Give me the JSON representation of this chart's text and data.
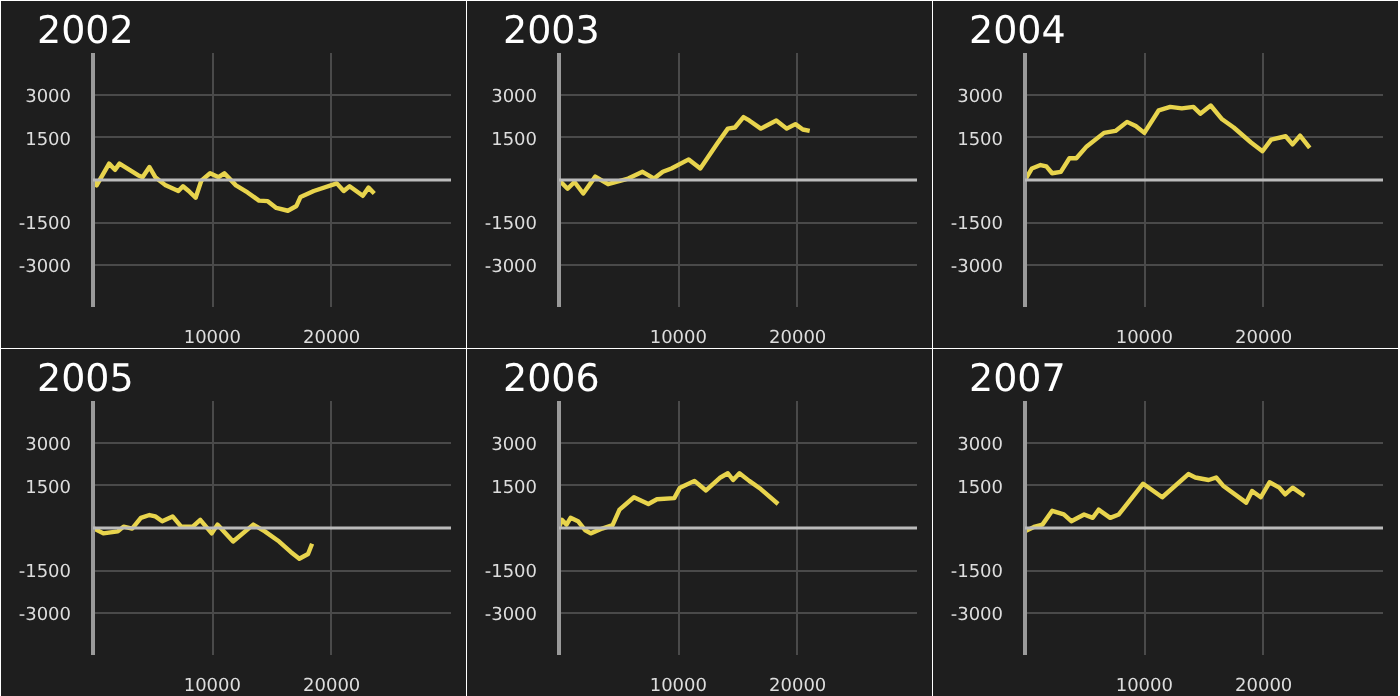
{
  "chart_data": [
    {
      "type": "line",
      "title": "2002",
      "color": "#e8d44d",
      "xlim": [
        0,
        30000
      ],
      "ylim": [
        -4500,
        4500
      ],
      "xticks": [
        10000,
        20000
      ],
      "yticks": [
        -3000,
        -1500,
        1500,
        3000
      ],
      "grid": true,
      "ref_lines": [
        {
          "axis": "y",
          "value": 0
        }
      ],
      "x": [
        0,
        300,
        1350,
        1840,
        2220,
        3770,
        4150,
        4730,
        5220,
        6090,
        7150,
        7540,
        8020,
        8600,
        9080,
        9810,
        10530,
        11010,
        11980,
        12950,
        13910,
        14640,
        15360,
        16330,
        17050,
        17390,
        18500,
        20430,
        21010,
        21500,
        22610,
        23090,
        23570
      ],
      "values": [
        0,
        -190,
        580,
        360,
        580,
        170,
        100,
        460,
        100,
        -190,
        -390,
        -220,
        -390,
        -630,
        -20,
        240,
        100,
        240,
        -190,
        -440,
        -730,
        -750,
        -990,
        -1090,
        -920,
        -600,
        -390,
        -120,
        -390,
        -220,
        -560,
        -270,
        -480
      ]
    },
    {
      "type": "line",
      "title": "2003",
      "color": "#e8d44d",
      "xlim": [
        0,
        30000
      ],
      "ylim": [
        -4500,
        4500
      ],
      "xticks": [
        10000,
        20000
      ],
      "yticks": [
        -3000,
        -1500,
        1500,
        3000
      ],
      "grid": true,
      "ref_lines": [
        {
          "axis": "y",
          "value": 0
        }
      ],
      "x": [
        0,
        720,
        1300,
        2030,
        3040,
        4110,
        5800,
        7000,
        7970,
        8700,
        9420,
        10870,
        11840,
        13290,
        14150,
        14740,
        15460,
        15940,
        16910,
        18210,
        19080,
        19810,
        20430,
        21010
      ],
      "values": [
        0,
        -310,
        -70,
        -480,
        120,
        -150,
        50,
        290,
        50,
        290,
        410,
        730,
        410,
        1310,
        1820,
        1860,
        2230,
        2110,
        1820,
        2110,
        1820,
        1980,
        1790,
        1740
      ]
    },
    {
      "type": "line",
      "title": "2004",
      "color": "#e8d44d",
      "xlim": [
        0,
        30000
      ],
      "ylim": [
        -4500,
        4500
      ],
      "xticks": [
        10000,
        20000
      ],
      "yticks": [
        -3000,
        -1500,
        1500,
        3000
      ],
      "grid": true,
      "ref_lines": [
        {
          "axis": "y",
          "value": 0
        }
      ],
      "x": [
        0,
        580,
        1300,
        1790,
        2270,
        3000,
        3720,
        4300,
        5170,
        6620,
        7580,
        8550,
        9280,
        10000,
        11210,
        12170,
        13140,
        14110,
        14690,
        15560,
        16520,
        17490,
        18940,
        19900,
        20630,
        21840,
        22420,
        23050,
        23860
      ],
      "values": [
        0,
        410,
        530,
        480,
        240,
        290,
        770,
        770,
        1190,
        1670,
        1740,
        2060,
        1910,
        1670,
        2470,
        2590,
        2540,
        2590,
        2350,
        2640,
        2150,
        1860,
        1330,
        1020,
        1430,
        1550,
        1260,
        1570,
        1140
      ]
    },
    {
      "type": "line",
      "title": "2005",
      "color": "#e8d44d",
      "xlim": [
        0,
        30000
      ],
      "ylim": [
        -4500,
        4500
      ],
      "xticks": [
        10000,
        20000
      ],
      "yticks": [
        -3000,
        -1500,
        1500,
        3000
      ],
      "grid": true,
      "ref_lines": [
        {
          "axis": "y",
          "value": 0
        }
      ],
      "x": [
        0,
        870,
        2080,
        2560,
        3280,
        4010,
        4730,
        5220,
        5800,
        6670,
        7390,
        8360,
        8990,
        9950,
        10430,
        11740,
        13430,
        14400,
        15600,
        16570,
        17290,
        18020,
        18360
      ],
      "values": [
        0,
        -190,
        -120,
        50,
        -20,
        360,
        460,
        410,
        240,
        410,
        50,
        50,
        290,
        -190,
        120,
        -480,
        120,
        -120,
        -480,
        -850,
        -1090,
        -920,
        -560
      ]
    },
    {
      "type": "line",
      "title": "2006",
      "color": "#e8d44d",
      "xlim": [
        0,
        30000
      ],
      "ylim": [
        -4500,
        4500
      ],
      "xticks": [
        10000,
        20000
      ],
      "yticks": [
        -3000,
        -1500,
        1500,
        3000
      ],
      "grid": true,
      "ref_lines": [
        {
          "axis": "y",
          "value": 0
        }
      ],
      "x": [
        0,
        240,
        630,
        970,
        1590,
        2170,
        2660,
        3620,
        4490,
        5070,
        6280,
        7490,
        8210,
        9660,
        10140,
        11350,
        12320,
        13530,
        14150,
        14590,
        15120,
        15940,
        16910,
        18360
      ],
      "values": [
        0,
        290,
        120,
        360,
        240,
        -70,
        -190,
        -20,
        100,
        650,
        1090,
        850,
        1020,
        1060,
        1430,
        1670,
        1330,
        1790,
        1940,
        1700,
        1940,
        1670,
        1380,
        850
      ]
    },
    {
      "type": "line",
      "title": "2007",
      "color": "#e8d44d",
      "xlim": [
        0,
        30000
      ],
      "ylim": [
        -4500,
        4500
      ],
      "xticks": [
        10000,
        20000
      ],
      "yticks": [
        -3000,
        -1500,
        1500,
        3000
      ],
      "grid": true,
      "ref_lines": [
        {
          "axis": "y",
          "value": 0
        }
      ],
      "x": [
        0,
        830,
        1460,
        2280,
        3250,
        3880,
        4950,
        5680,
        6170,
        7140,
        7860,
        9900,
        11500,
        13690,
        14270,
        15390,
        16020,
        16600,
        18540,
        19030,
        19760,
        20490,
        21310,
        21800,
        22430,
        23400
      ],
      "values": [
        -120,
        50,
        120,
        610,
        480,
        240,
        480,
        360,
        650,
        360,
        480,
        1570,
        1090,
        1910,
        1790,
        1700,
        1790,
        1500,
        900,
        1310,
        1090,
        1620,
        1430,
        1190,
        1430,
        1140
      ]
    }
  ]
}
